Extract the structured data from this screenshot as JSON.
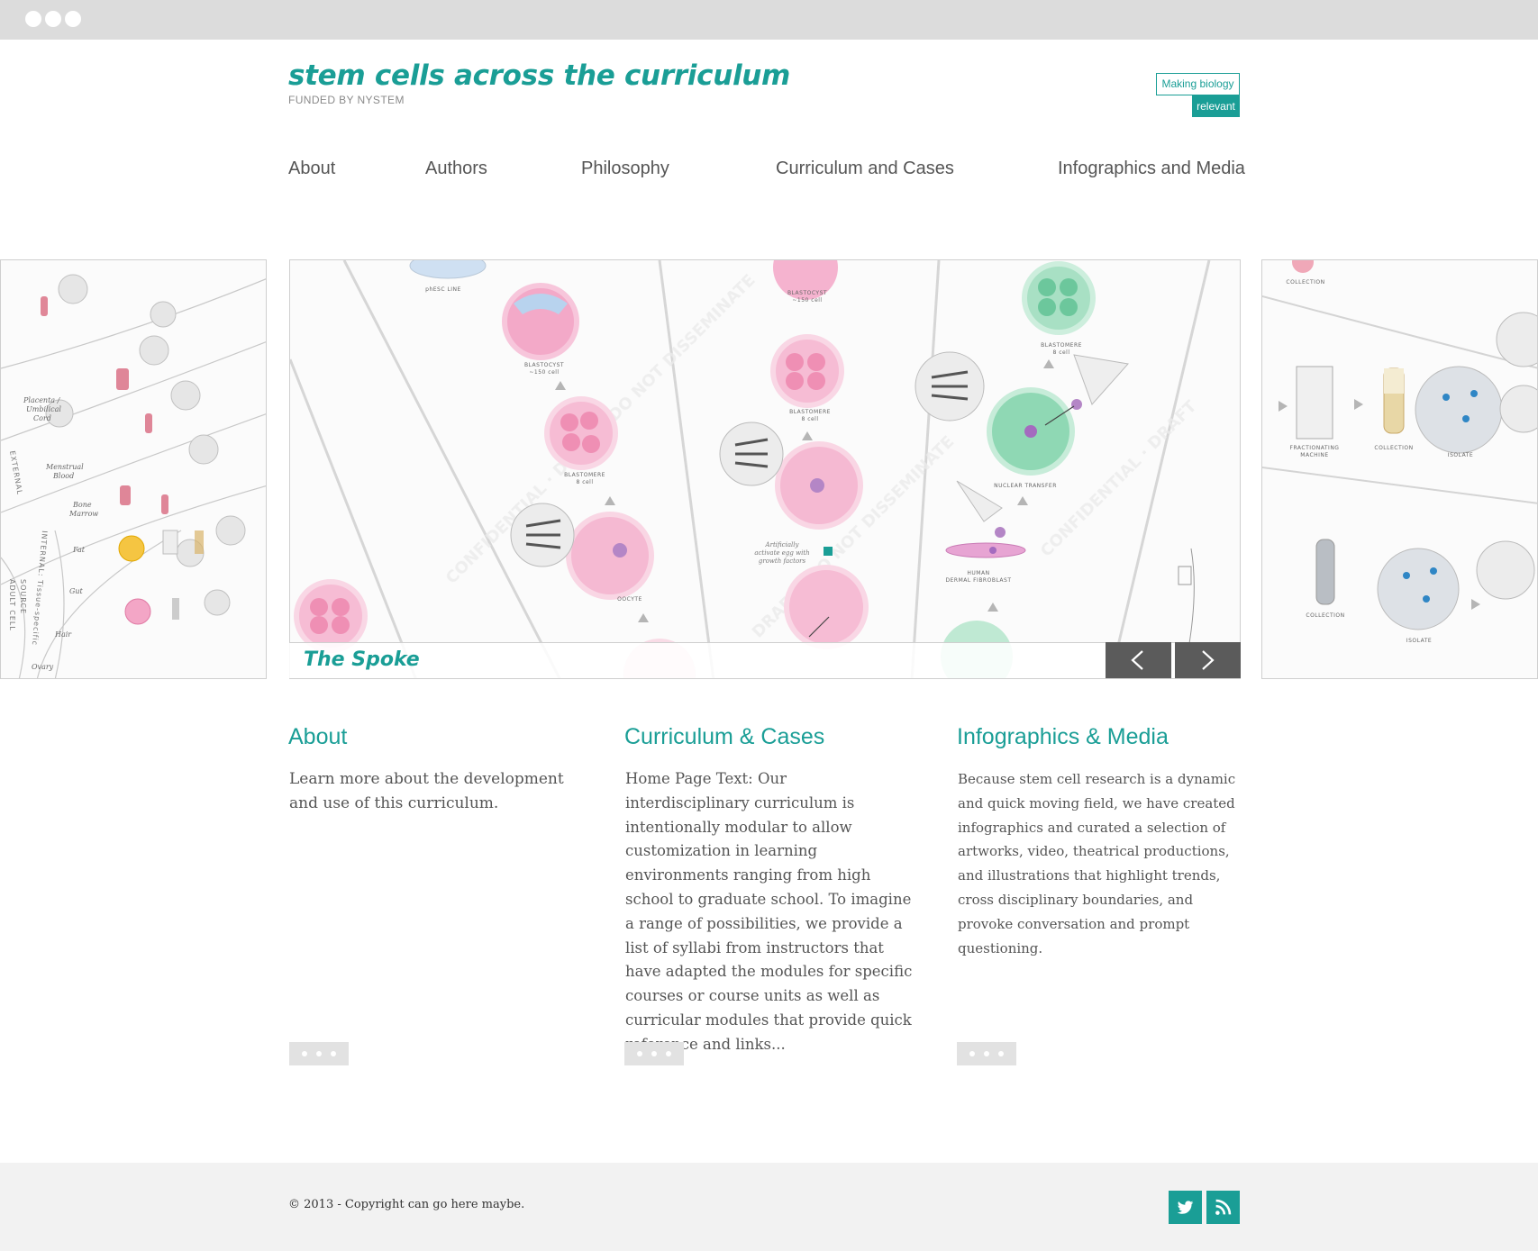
{
  "site": {
    "title": "stem cells across the curriculum",
    "funded_by": "FUNDED BY NYSTEM",
    "tagline_part1": "Making biology",
    "tagline_part2": "relevant",
    "accent_color": "#1a9e96"
  },
  "nav": {
    "items": [
      {
        "label": "About"
      },
      {
        "label": "Authors"
      },
      {
        "label": "Philosophy"
      },
      {
        "label": "Curriculum and Cases"
      },
      {
        "label": "Infographics and Media"
      }
    ]
  },
  "carousel": {
    "caption": "The Spoke",
    "prev_icon": "chevron-left-icon",
    "next_icon": "chevron-right-icon",
    "illustration_labels": {
      "phesc_line": "phESC LINE",
      "blastocyst_150": "BLASTOCYST",
      "blastocyst_150_sub": "~150 cell",
      "blastomere_8": "BLASTOMERE",
      "blastomere_8_sub": "8 cell",
      "oocyte": "OOCYTE",
      "nuclear_transfer": "NUCLEAR TRANSFER",
      "human_dermal": "HUMAN",
      "human_dermal_sub": "DERMAL FIBROBLAST",
      "artificially": "Artificially",
      "activate": "activate egg with",
      "growth": "growth factors",
      "collection": "COLLECTION",
      "isolate": "ISOLATE",
      "fractionating": "FRACTIONATING",
      "fractionating_sub": "MACHINE",
      "placenta": "Placenta /",
      "umbilical": "Umbilical",
      "cord": "Cord",
      "menstrual": "Menstrual",
      "blood": "Blood",
      "bone": "Bone",
      "marrow": "Marrow",
      "fat": "Fat",
      "gut": "Gut",
      "hair": "Hair",
      "ovary": "Ovary",
      "adult": "ADULT CELL",
      "source": "SOURCE",
      "external": "EXTERNAL",
      "internal": "INTERNAL: Tissue-specific"
    }
  },
  "columns": [
    {
      "heading": "About",
      "text": "Learn more about the development and use of this curriculum."
    },
    {
      "heading": "Curriculum & Cases",
      "text": "Home Page Text: Our interdisciplinary curriculum is intentionally modular to allow customization in learning environments ranging from high school to graduate school. To imagine a range of possibilities, we provide a list of syllabi from instructors that have adapted the modules for specific courses or course units  as well as  curricular modules that provide quick reference and links..."
    },
    {
      "heading": "Infographics & Media",
      "text": "Because stem cell research is a dynamic and quick moving field, we have created infographics and curated a selection of artworks, video, theatrical productions, and illustrations  that highlight trends, cross disciplinary boundaries, and provoke conversation and prompt questioning."
    }
  ],
  "footer": {
    "copyright": "© 2013 - Copyright can go here maybe.",
    "social": [
      "twitter-icon",
      "rss-icon"
    ]
  }
}
